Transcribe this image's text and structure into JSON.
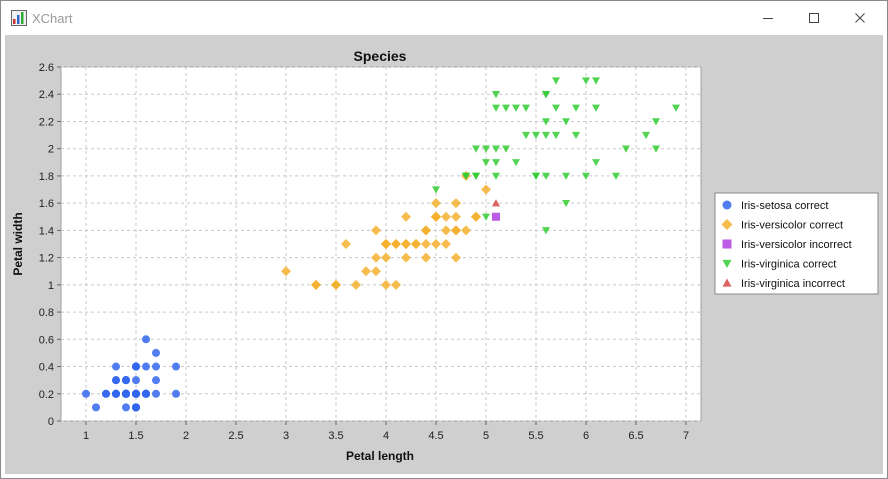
{
  "window": {
    "title": "XChart"
  },
  "chart_data": {
    "type": "scatter",
    "title": "Species",
    "xlabel": "Petal length",
    "ylabel": "Petal width",
    "xlim": [
      0.75,
      7.15
    ],
    "ylim": [
      0,
      2.6
    ],
    "x_ticks": [
      "1",
      "1.5",
      "2",
      "2.5",
      "3",
      "3.5",
      "4",
      "4.5",
      "5",
      "5.5",
      "6",
      "6.5",
      "7"
    ],
    "y_ticks": [
      "0",
      "0.2",
      "0.4",
      "0.6",
      "0.8",
      "1",
      "1.2",
      "1.4",
      "1.6",
      "1.8",
      "2",
      "2.2",
      "2.4",
      "2.6"
    ],
    "grid": true,
    "legend_position": "outside-right",
    "series": [
      {
        "name": "Iris-setosa correct",
        "marker": "circle",
        "color": "#3366ee",
        "points": [
          [
            1.4,
            0.2
          ],
          [
            1.4,
            0.2
          ],
          [
            1.3,
            0.2
          ],
          [
            1.5,
            0.2
          ],
          [
            1.4,
            0.2
          ],
          [
            1.7,
            0.4
          ],
          [
            1.4,
            0.3
          ],
          [
            1.5,
            0.2
          ],
          [
            1.4,
            0.2
          ],
          [
            1.5,
            0.1
          ],
          [
            1.5,
            0.2
          ],
          [
            1.6,
            0.2
          ],
          [
            1.4,
            0.1
          ],
          [
            1.1,
            0.1
          ],
          [
            1.2,
            0.2
          ],
          [
            1.5,
            0.4
          ],
          [
            1.3,
            0.4
          ],
          [
            1.4,
            0.3
          ],
          [
            1.7,
            0.3
          ],
          [
            1.5,
            0.3
          ],
          [
            1.7,
            0.2
          ],
          [
            1.5,
            0.4
          ],
          [
            1.0,
            0.2
          ],
          [
            1.7,
            0.5
          ],
          [
            1.9,
            0.2
          ],
          [
            1.6,
            0.2
          ],
          [
            1.6,
            0.4
          ],
          [
            1.5,
            0.2
          ],
          [
            1.4,
            0.2
          ],
          [
            1.6,
            0.2
          ],
          [
            1.6,
            0.2
          ],
          [
            1.5,
            0.4
          ],
          [
            1.5,
            0.1
          ],
          [
            1.4,
            0.2
          ],
          [
            1.5,
            0.1
          ],
          [
            1.2,
            0.2
          ],
          [
            1.3,
            0.2
          ],
          [
            1.5,
            0.1
          ],
          [
            1.3,
            0.2
          ],
          [
            1.5,
            0.2
          ],
          [
            1.3,
            0.3
          ],
          [
            1.3,
            0.3
          ],
          [
            1.3,
            0.2
          ],
          [
            1.6,
            0.6
          ],
          [
            1.9,
            0.4
          ],
          [
            1.4,
            0.3
          ],
          [
            1.6,
            0.2
          ],
          [
            1.4,
            0.2
          ],
          [
            1.5,
            0.2
          ],
          [
            1.4,
            0.2
          ]
        ]
      },
      {
        "name": "Iris-versicolor correct",
        "marker": "diamond",
        "color": "#f5b02e",
        "points": [
          [
            4.7,
            1.4
          ],
          [
            4.5,
            1.5
          ],
          [
            4.9,
            1.5
          ],
          [
            4.0,
            1.3
          ],
          [
            4.6,
            1.5
          ],
          [
            4.5,
            1.3
          ],
          [
            4.7,
            1.6
          ],
          [
            3.3,
            1.0
          ],
          [
            4.6,
            1.3
          ],
          [
            3.9,
            1.4
          ],
          [
            3.5,
            1.0
          ],
          [
            4.2,
            1.5
          ],
          [
            4.0,
            1.0
          ],
          [
            4.7,
            1.4
          ],
          [
            3.6,
            1.3
          ],
          [
            4.4,
            1.4
          ],
          [
            4.5,
            1.5
          ],
          [
            4.1,
            1.0
          ],
          [
            4.5,
            1.5
          ],
          [
            3.9,
            1.1
          ],
          [
            4.8,
            1.8
          ],
          [
            4.0,
            1.3
          ],
          [
            4.9,
            1.5
          ],
          [
            4.7,
            1.2
          ],
          [
            4.3,
            1.3
          ],
          [
            4.4,
            1.4
          ],
          [
            4.8,
            1.4
          ],
          [
            5.0,
            1.7
          ],
          [
            4.5,
            1.5
          ],
          [
            3.5,
            1.0
          ],
          [
            3.8,
            1.1
          ],
          [
            3.7,
            1.0
          ],
          [
            3.9,
            1.2
          ],
          [
            4.5,
            1.6
          ],
          [
            4.7,
            1.5
          ],
          [
            4.4,
            1.3
          ],
          [
            4.1,
            1.3
          ],
          [
            4.0,
            1.3
          ],
          [
            4.4,
            1.2
          ],
          [
            4.6,
            1.4
          ],
          [
            4.0,
            1.2
          ],
          [
            3.3,
            1.0
          ],
          [
            4.2,
            1.3
          ],
          [
            4.2,
            1.2
          ],
          [
            4.2,
            1.3
          ],
          [
            4.3,
            1.3
          ],
          [
            3.0,
            1.1
          ],
          [
            4.1,
            1.3
          ]
        ]
      },
      {
        "name": "Iris-versicolor incorrect",
        "marker": "square",
        "color": "#b03ee0",
        "points": [
          [
            5.1,
            1.5
          ]
        ]
      },
      {
        "name": "Iris-virginica correct",
        "marker": "triangle-down",
        "color": "#33cc33",
        "points": [
          [
            6.0,
            2.5
          ],
          [
            5.1,
            1.9
          ],
          [
            5.9,
            2.1
          ],
          [
            5.6,
            1.8
          ],
          [
            5.8,
            2.2
          ],
          [
            6.6,
            2.1
          ],
          [
            4.5,
            1.7
          ],
          [
            6.3,
            1.8
          ],
          [
            5.8,
            1.8
          ],
          [
            6.1,
            2.5
          ],
          [
            5.1,
            2.0
          ],
          [
            5.3,
            1.9
          ],
          [
            5.5,
            2.1
          ],
          [
            5.0,
            2.0
          ],
          [
            5.1,
            2.4
          ],
          [
            5.3,
            2.3
          ],
          [
            5.5,
            1.8
          ],
          [
            6.7,
            2.2
          ],
          [
            6.9,
            2.3
          ],
          [
            5.0,
            1.5
          ],
          [
            5.7,
            2.3
          ],
          [
            4.9,
            2.0
          ],
          [
            6.7,
            2.0
          ],
          [
            4.9,
            1.8
          ],
          [
            5.7,
            2.1
          ],
          [
            6.0,
            1.8
          ],
          [
            4.8,
            1.8
          ],
          [
            4.9,
            1.8
          ],
          [
            5.6,
            2.1
          ],
          [
            5.8,
            1.6
          ],
          [
            6.1,
            1.9
          ],
          [
            6.4,
            2.0
          ],
          [
            5.6,
            2.2
          ],
          [
            5.6,
            1.4
          ],
          [
            6.1,
            2.3
          ],
          [
            5.6,
            2.4
          ],
          [
            5.5,
            1.8
          ],
          [
            4.8,
            1.8
          ],
          [
            5.4,
            2.1
          ],
          [
            5.6,
            2.4
          ],
          [
            5.1,
            2.3
          ],
          [
            5.9,
            2.3
          ],
          [
            5.7,
            2.5
          ],
          [
            5.2,
            2.3
          ],
          [
            5.0,
            1.9
          ],
          [
            5.2,
            2.0
          ],
          [
            5.4,
            2.3
          ],
          [
            5.1,
            1.8
          ]
        ]
      },
      {
        "name": "Iris-virginica incorrect",
        "marker": "triangle-up",
        "color": "#d84848",
        "points": [
          [
            5.1,
            1.6
          ]
        ]
      }
    ]
  }
}
